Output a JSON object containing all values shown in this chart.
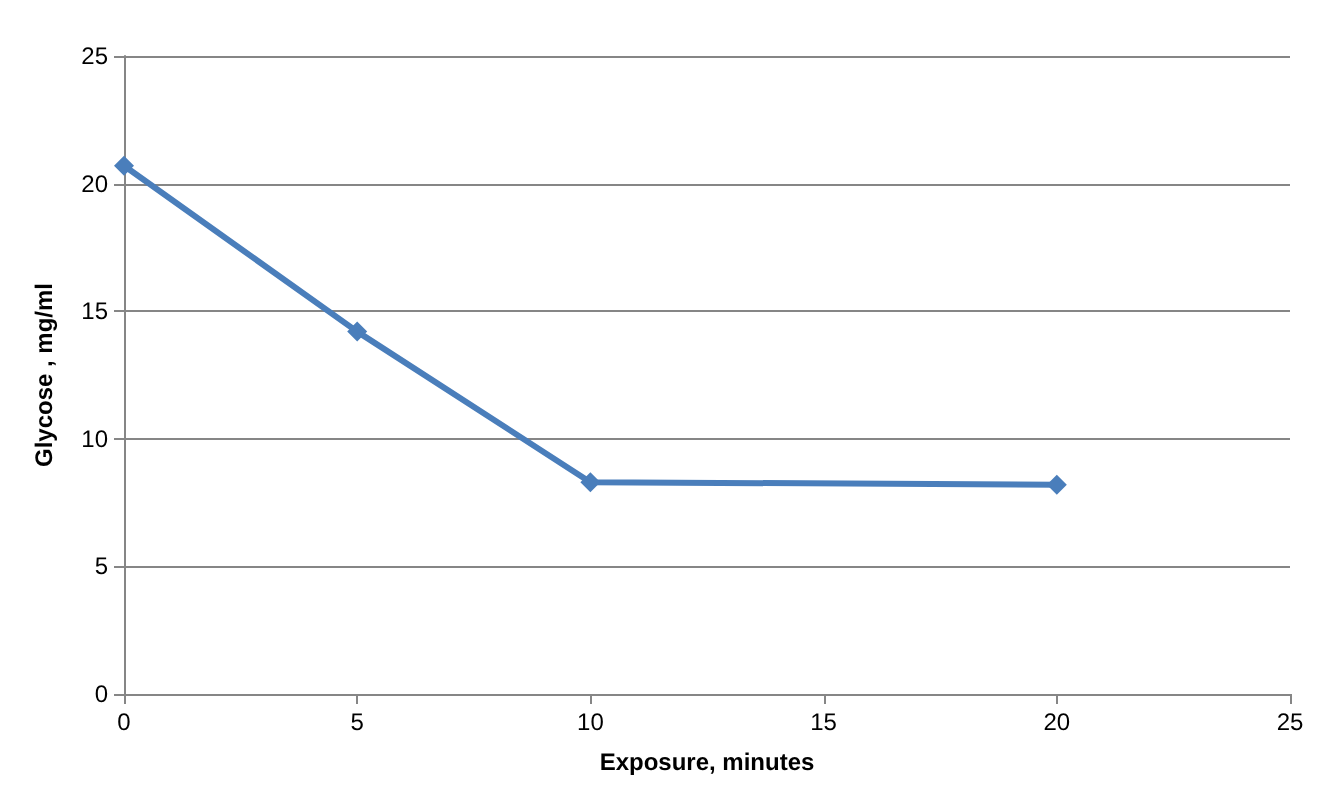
{
  "chart_data": {
    "type": "line",
    "xlabel": "Exposure, minutes",
    "ylabel": "Glycose , mg/ml",
    "x": [
      0,
      5,
      10,
      20
    ],
    "series": [
      {
        "color": "#4a7ebb",
        "values": [
          20.7,
          14.2,
          8.3,
          8.2
        ]
      }
    ],
    "xlim": [
      0,
      25
    ],
    "xticks": [
      0,
      5,
      10,
      15,
      20,
      25
    ],
    "ylim": [
      0,
      25
    ],
    "yticks": [
      0,
      5,
      10,
      15,
      20,
      25
    ],
    "grid": "y",
    "marker": "diamond",
    "line_style": "solid"
  }
}
